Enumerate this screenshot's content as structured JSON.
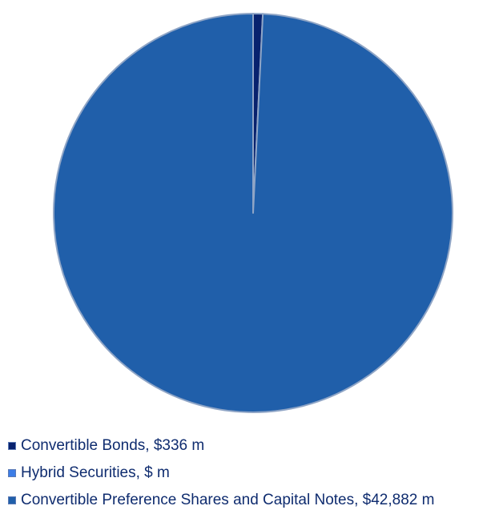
{
  "chart_data": {
    "type": "pie",
    "series": [
      {
        "name": "Convertible Bonds",
        "value": 336,
        "legend_label": "Convertible Bonds, $336 m",
        "color": "#08226e"
      },
      {
        "name": "Hybrid Securities",
        "value": 0,
        "legend_label": "Hybrid Securities, $ m",
        "color": "#3c7de6"
      },
      {
        "name": "Convertible Preference Shares and Capital Notes",
        "value": 42882,
        "legend_label": "Convertible Preference Shares and Capital Notes, $42,882 m",
        "color": "#205faa"
      }
    ],
    "slice_border_color": "#8fa5c6",
    "legend_placement": "bottom",
    "start_angle": "top, clockwise"
  }
}
